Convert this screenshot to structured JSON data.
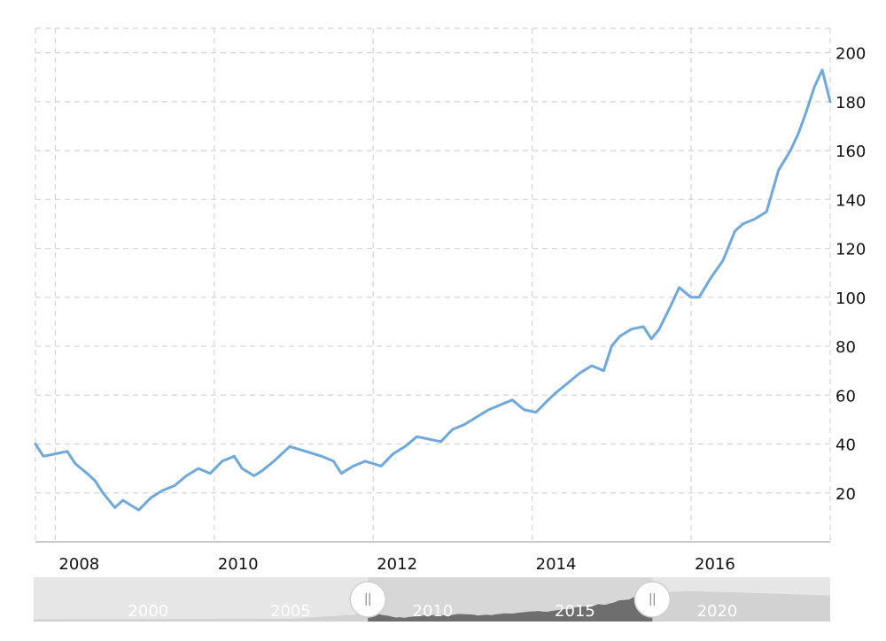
{
  "colors": {
    "line": "#6fa8dc",
    "grid": "#d4d4d4",
    "navigator_bg": "#e6e6e6",
    "navigator_area": "#d2d2d2",
    "navigator_selected_area": "#6e6e6e",
    "navigator_selected_bg": "#d7d7d7"
  },
  "chart_data": {
    "type": "line",
    "title": "",
    "xlabel": "",
    "ylabel": "",
    "xlim": [
      2007.75,
      2017.75
    ],
    "ylim": [
      0,
      210
    ],
    "x_ticks": [
      2008,
      2010,
      2012,
      2014,
      2016
    ],
    "x_tick_labels": [
      "2008",
      "2010",
      "2012",
      "2014",
      "2016"
    ],
    "y_ticks": [
      20,
      40,
      60,
      80,
      100,
      120,
      140,
      160,
      180,
      200
    ],
    "y_tick_labels": [
      "20",
      "40",
      "60",
      "80",
      "100",
      "120",
      "140",
      "160",
      "180",
      "200"
    ],
    "y_axis_position": "right",
    "grid": true,
    "legend": "none",
    "series": [
      {
        "x": [
          2007.75,
          2007.85,
          2008.0,
          2008.15,
          2008.25,
          2008.4,
          2008.5,
          2008.6,
          2008.7,
          2008.75,
          2008.85,
          2008.95,
          2009.05,
          2009.2,
          2009.35,
          2009.5,
          2009.65,
          2009.8,
          2009.95,
          2010.1,
          2010.25,
          2010.35,
          2010.5,
          2010.6,
          2010.75,
          2010.95,
          2011.15,
          2011.35,
          2011.5,
          2011.6,
          2011.75,
          2011.9,
          2012.1,
          2012.25,
          2012.4,
          2012.55,
          2012.7,
          2012.85,
          2013.0,
          2013.15,
          2013.3,
          2013.45,
          2013.6,
          2013.75,
          2013.9,
          2014.05,
          2014.2,
          2014.3,
          2014.45,
          2014.6,
          2014.75,
          2014.9,
          2015.0,
          2015.1,
          2015.25,
          2015.4,
          2015.5,
          2015.6,
          2015.75,
          2015.85,
          2016.0,
          2016.1,
          2016.25,
          2016.4,
          2016.55,
          2016.65,
          2016.8,
          2016.95,
          2017.1,
          2017.25,
          2017.35,
          2017.45,
          2017.55,
          2017.65,
          2017.75
        ],
        "y": [
          40,
          35,
          36,
          37,
          32,
          28,
          25,
          20,
          16,
          14,
          17,
          15,
          13,
          18,
          21,
          23,
          27,
          30,
          28,
          33,
          35,
          30,
          27,
          29,
          33,
          39,
          37,
          35,
          33,
          28,
          31,
          33,
          31,
          36,
          39,
          43,
          42,
          41,
          46,
          48,
          51,
          54,
          56,
          58,
          54,
          53,
          58,
          61,
          65,
          69,
          72,
          70,
          80,
          84,
          87,
          88,
          83,
          87,
          97,
          104,
          100,
          100,
          108,
          115,
          127,
          130,
          132,
          135,
          152,
          160,
          167,
          176,
          186,
          193,
          180
        ]
      }
    ]
  },
  "navigator": {
    "labels": [
      "2000",
      "2005",
      "2010",
      "2015",
      "2020"
    ],
    "label_years": [
      2000,
      2005,
      2010,
      2015,
      2020
    ],
    "year_range": [
      1996,
      2024
    ],
    "selected_range": [
      2007.75,
      2017.75
    ]
  }
}
